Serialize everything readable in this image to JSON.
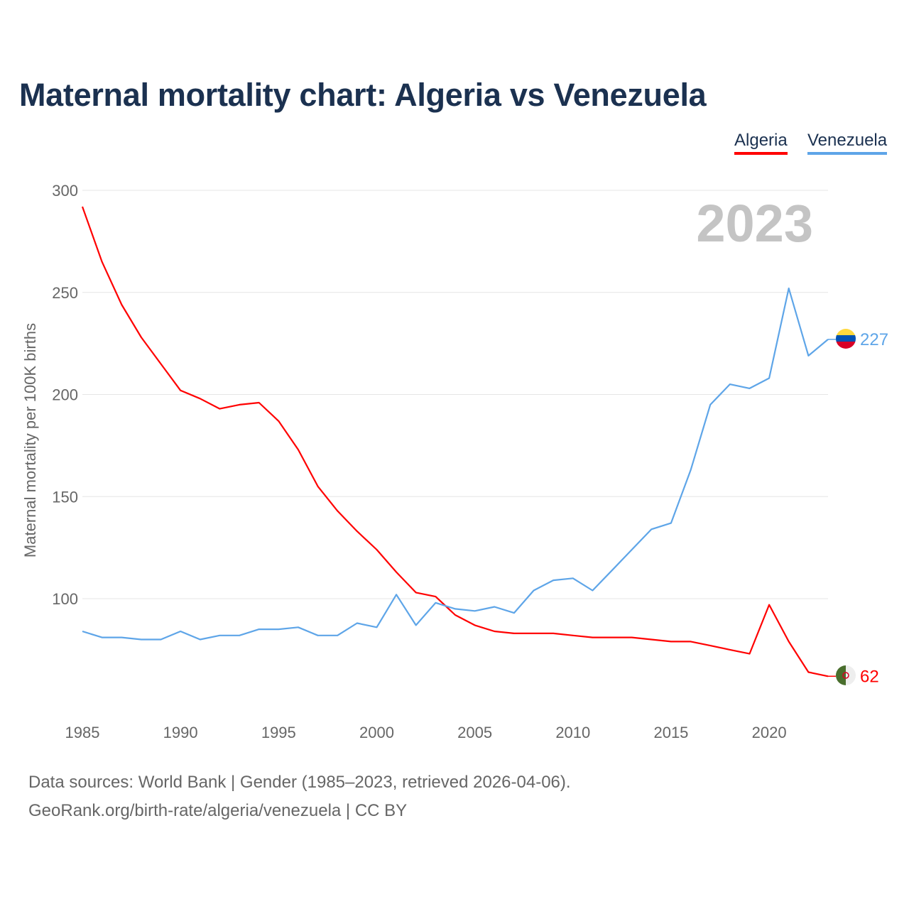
{
  "title": "Maternal mortality chart: Algeria vs Venezuela",
  "legend": [
    "Algeria",
    "Venezuela"
  ],
  "year_watermark": "2023",
  "footer": {
    "line1": "Data sources: World Bank | Gender (1985–2023, retrieved 2026-04-06).",
    "line2": "GeoRank.org/birth-rate/algeria/venezuela | CC BY"
  },
  "chart_data": {
    "type": "line",
    "title": "Maternal mortality chart: Algeria vs Venezuela",
    "xlabel": "",
    "ylabel": "Maternal mortality per 100K births",
    "xlim": [
      1985,
      2023
    ],
    "ylim": [
      40,
      300
    ],
    "yticks": [
      100,
      150,
      200,
      250,
      300
    ],
    "xticks": [
      1985,
      1990,
      1995,
      2000,
      2005,
      2010,
      2015,
      2020
    ],
    "grid": true,
    "legend_position": "top-right",
    "x": [
      1985,
      1986,
      1987,
      1988,
      1989,
      1990,
      1991,
      1992,
      1993,
      1994,
      1995,
      1996,
      1997,
      1998,
      1999,
      2000,
      2001,
      2002,
      2003,
      2004,
      2005,
      2006,
      2007,
      2008,
      2009,
      2010,
      2011,
      2012,
      2013,
      2014,
      2015,
      2016,
      2017,
      2018,
      2019,
      2020,
      2021,
      2022,
      2023
    ],
    "series": [
      {
        "name": "Algeria",
        "color": "#ff0000",
        "end_label": "62",
        "values": [
          292,
          265,
          244,
          228,
          215,
          202,
          198,
          193,
          195,
          196,
          187,
          173,
          155,
          143,
          133,
          124,
          113,
          103,
          101,
          92,
          87,
          84,
          83,
          83,
          83,
          82,
          81,
          81,
          81,
          80,
          79,
          79,
          77,
          75,
          73,
          97,
          79,
          64,
          62
        ]
      },
      {
        "name": "Venezuela",
        "color": "#5ea5e8",
        "end_label": "227",
        "values": [
          84,
          81,
          81,
          80,
          80,
          84,
          80,
          82,
          82,
          85,
          85,
          86,
          82,
          82,
          88,
          86,
          102,
          87,
          98,
          95,
          94,
          96,
          93,
          104,
          109,
          110,
          104,
          114,
          124,
          134,
          137,
          163,
          195,
          205,
          203,
          208,
          252,
          219,
          227
        ]
      }
    ]
  }
}
